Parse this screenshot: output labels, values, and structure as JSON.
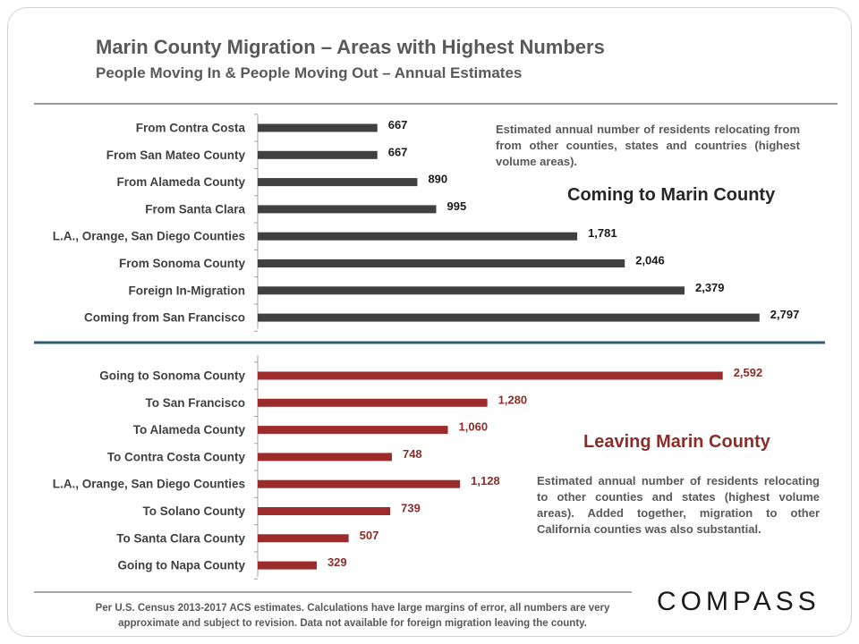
{
  "header": {
    "title": "Marin County Migration – Areas with Highest Numbers",
    "subtitle": "People Moving In & People Moving Out – Annual Estimates"
  },
  "annotations": {
    "coming_note": "Estimated annual number of residents relocating from from other counties, states and countries (highest volume areas).",
    "coming_heading": "Coming to Marin County",
    "leaving_heading": "Leaving Marin County",
    "leaving_note": "Estimated annual number of residents relocating to other counties and states (highest volume areas). Added together, migration to other California counties was also substantial."
  },
  "footer": {
    "text": "Per U.S. Census 2013-2017 ACS estimates. Calculations have large margins of error, all numbers are very approximate and subject to revision. Data not available for foreign migration leaving the county."
  },
  "logo": {
    "text": "COMPASS"
  },
  "colors": {
    "coming": "#404040",
    "leaving": "#9e2b2b",
    "divider": "#2e5f6e"
  },
  "chart_data": [
    {
      "type": "bar",
      "orientation": "horizontal",
      "categories": [
        "From Contra Costa",
        "From San Mateo County",
        "From Alameda County",
        "From Santa Clara",
        "L.A., Orange, San Diego Counties",
        "From Sonoma County",
        "Foreign In-Migration",
        "Coming from San Francisco"
      ],
      "values": [
        667,
        667,
        890,
        995,
        1781,
        2046,
        2379,
        2797
      ],
      "value_labels": [
        "667",
        "667",
        "890",
        "995",
        "1,781",
        "2,046",
        "2,379",
        "2,797"
      ],
      "color": "#404040"
    },
    {
      "type": "bar",
      "orientation": "horizontal",
      "categories": [
        "Going to Sonoma County",
        "To San Francisco",
        "To Alameda County",
        "To Contra Costa County",
        "L.A., Orange, San Diego Counties",
        "To Solano County",
        "To Santa Clara County",
        "Going to Napa County"
      ],
      "values": [
        2592,
        1280,
        1060,
        748,
        1128,
        739,
        507,
        329
      ],
      "value_labels": [
        "2,592",
        "1,280",
        "1,060",
        "748",
        "1,128",
        "739",
        "507",
        "329"
      ],
      "color": "#9e2b2b"
    }
  ]
}
